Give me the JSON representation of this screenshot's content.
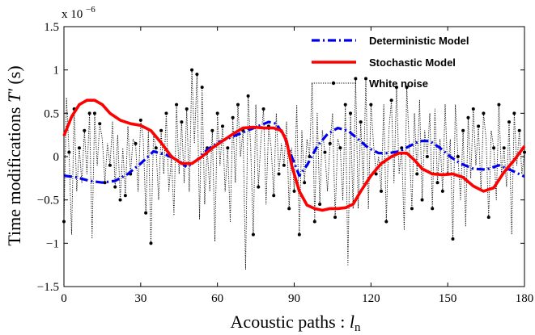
{
  "chart_data": {
    "type": "line",
    "xlabel": "Acoustic paths : ",
    "xlabel_var": "l",
    "xlabel_sub": "n",
    "ylabel": "Time modifications ",
    "ylabel_var": "T'",
    "ylabel_unit": " (s)",
    "y_exponent_prefix": "x 10",
    "y_exponent_power": "−6",
    "xlim": [
      0,
      180
    ],
    "ylim": [
      -1.5,
      1.5
    ],
    "x_ticks": [
      0,
      30,
      60,
      90,
      120,
      150,
      180
    ],
    "y_ticks": [
      -1.5,
      -1,
      -0.5,
      0,
      0.5,
      1,
      1.5
    ],
    "y_tick_labels": [
      "−1.5",
      "−1",
      "−0.5",
      "0",
      "0.5",
      "1",
      "1.5"
    ],
    "legend_position": "top-right",
    "colors": {
      "deterministic": "#0000ee",
      "stochastic": "#ff0000",
      "noise": "#000000"
    },
    "series": [
      {
        "name": "Deterministic Model",
        "style": "dash-dot",
        "points": [
          [
            0,
            -0.22
          ],
          [
            5,
            -0.24
          ],
          [
            10,
            -0.28
          ],
          [
            15,
            -0.3
          ],
          [
            20,
            -0.28
          ],
          [
            25,
            -0.2
          ],
          [
            30,
            -0.08
          ],
          [
            35,
            0.06
          ],
          [
            40,
            0.02
          ],
          [
            45,
            -0.05
          ],
          [
            48,
            -0.12
          ],
          [
            52,
            -0.04
          ],
          [
            56,
            0.08
          ],
          [
            60,
            0.16
          ],
          [
            65,
            0.22
          ],
          [
            70,
            0.28
          ],
          [
            75,
            0.34
          ],
          [
            80,
            0.4
          ],
          [
            83,
            0.38
          ],
          [
            86,
            0.24
          ],
          [
            89,
            0.0
          ],
          [
            92,
            -0.22
          ],
          [
            95,
            -0.1
          ],
          [
            99,
            0.12
          ],
          [
            103,
            0.26
          ],
          [
            107,
            0.33
          ],
          [
            111,
            0.3
          ],
          [
            115,
            0.2
          ],
          [
            119,
            0.1
          ],
          [
            123,
            0.04
          ],
          [
            127,
            0.04
          ],
          [
            131,
            0.06
          ],
          [
            135,
            0.12
          ],
          [
            139,
            0.18
          ],
          [
            143,
            0.18
          ],
          [
            147,
            0.1
          ],
          [
            151,
            0.0
          ],
          [
            155,
            -0.08
          ],
          [
            160,
            -0.14
          ],
          [
            165,
            -0.15
          ],
          [
            170,
            -0.1
          ],
          [
            175,
            -0.16
          ],
          [
            180,
            -0.23
          ]
        ]
      },
      {
        "name": "Stochastic Model",
        "style": "solid",
        "points": [
          [
            0,
            0.24
          ],
          [
            3,
            0.46
          ],
          [
            6,
            0.6
          ],
          [
            9,
            0.65
          ],
          [
            12,
            0.65
          ],
          [
            15,
            0.6
          ],
          [
            18,
            0.5
          ],
          [
            22,
            0.42
          ],
          [
            26,
            0.38
          ],
          [
            30,
            0.36
          ],
          [
            34,
            0.3
          ],
          [
            38,
            0.16
          ],
          [
            42,
            0.0
          ],
          [
            46,
            -0.08
          ],
          [
            50,
            -0.08
          ],
          [
            54,
            0.0
          ],
          [
            58,
            0.1
          ],
          [
            62,
            0.18
          ],
          [
            66,
            0.26
          ],
          [
            70,
            0.33
          ],
          [
            74,
            0.34
          ],
          [
            78,
            0.33
          ],
          [
            82,
            0.33
          ],
          [
            85,
            0.3
          ],
          [
            87,
            0.18
          ],
          [
            89,
            -0.1
          ],
          [
            92,
            -0.4
          ],
          [
            95,
            -0.56
          ],
          [
            98,
            -0.6
          ],
          [
            101,
            -0.62
          ],
          [
            104,
            -0.6
          ],
          [
            107,
            -0.6
          ],
          [
            110,
            -0.59
          ],
          [
            113,
            -0.55
          ],
          [
            116,
            -0.4
          ],
          [
            120,
            -0.22
          ],
          [
            124,
            -0.08
          ],
          [
            128,
            0.0
          ],
          [
            131,
            0.04
          ],
          [
            134,
            0.04
          ],
          [
            137,
            -0.04
          ],
          [
            140,
            -0.14
          ],
          [
            144,
            -0.2
          ],
          [
            148,
            -0.21
          ],
          [
            152,
            -0.2
          ],
          [
            156,
            -0.24
          ],
          [
            160,
            -0.34
          ],
          [
            164,
            -0.4
          ],
          [
            168,
            -0.36
          ],
          [
            172,
            -0.18
          ],
          [
            176,
            -0.04
          ],
          [
            180,
            0.12
          ]
        ]
      },
      {
        "name": "White noise",
        "style": "dotted",
        "points": [
          [
            0,
            -0.75
          ],
          [
            1,
            0.68
          ],
          [
            2,
            0.05
          ],
          [
            3,
            -0.9
          ],
          [
            4,
            0.55
          ],
          [
            5,
            -0.4
          ],
          [
            6,
            0.1
          ],
          [
            7,
            -0.3
          ],
          [
            8,
            0.3
          ],
          [
            9,
            -0.2
          ],
          [
            10,
            0.5
          ],
          [
            11,
            -0.95
          ],
          [
            12,
            0.5
          ],
          [
            13,
            -0.1
          ],
          [
            14,
            0.38
          ],
          [
            15,
            0.2
          ],
          [
            16,
            -0.3
          ],
          [
            17,
            0.15
          ],
          [
            18,
            -0.1
          ],
          [
            19,
            0.4
          ],
          [
            20,
            -0.35
          ],
          [
            21,
            0.25
          ],
          [
            22,
            -0.5
          ],
          [
            23,
            0.1
          ],
          [
            24,
            -0.45
          ],
          [
            25,
            0.35
          ],
          [
            26,
            -0.2
          ],
          [
            27,
            0.2
          ],
          [
            28,
            0.15
          ],
          [
            29,
            -0.4
          ],
          [
            30,
            0.42
          ],
          [
            31,
            0.2
          ],
          [
            32,
            -0.65
          ],
          [
            33,
            0.3
          ],
          [
            34,
            -1.0
          ],
          [
            35,
            0.25
          ],
          [
            36,
            0.1
          ],
          [
            37,
            -0.5
          ],
          [
            38,
            0.3
          ],
          [
            39,
            -0.2
          ],
          [
            40,
            0.5
          ],
          [
            41,
            -0.4
          ],
          [
            42,
            0.0
          ],
          [
            43,
            -0.68
          ],
          [
            44,
            0.6
          ],
          [
            45,
            -0.2
          ],
          [
            46,
            0.4
          ],
          [
            47,
            -0.3
          ],
          [
            48,
            0.55
          ],
          [
            49,
            -0.4
          ],
          [
            50,
            1.0
          ],
          [
            51,
            0.15
          ],
          [
            52,
            0.95
          ],
          [
            53,
            -0.72
          ],
          [
            54,
            0.8
          ],
          [
            55,
            -0.55
          ],
          [
            56,
            0.1
          ],
          [
            57,
            -0.4
          ],
          [
            58,
            0.3
          ],
          [
            59,
            -0.98
          ],
          [
            60,
            0.5
          ],
          [
            61,
            -0.1
          ],
          [
            62,
            0.35
          ],
          [
            63,
            -0.4
          ],
          [
            64,
            0.1
          ],
          [
            65,
            -0.75
          ],
          [
            66,
            0.45
          ],
          [
            67,
            -0.3
          ],
          [
            68,
            0.6
          ],
          [
            69,
            0.0
          ],
          [
            70,
            0.3
          ],
          [
            71,
            -1.3
          ],
          [
            72,
            0.7
          ],
          [
            73,
            0.1
          ],
          [
            74,
            -0.9
          ],
          [
            75,
            0.6
          ],
          [
            76,
            -0.35
          ],
          [
            77,
            0.2
          ],
          [
            78,
            0.55
          ],
          [
            79,
            -0.55
          ],
          [
            80,
            0.35
          ],
          [
            81,
            0.1
          ],
          [
            82,
            -0.45
          ],
          [
            83,
            0.5
          ],
          [
            84,
            -0.2
          ],
          [
            85,
            0.15
          ],
          [
            86,
            -0.1
          ],
          [
            87,
            0.4
          ],
          [
            88,
            -0.6
          ],
          [
            89,
            0.1
          ],
          [
            90,
            -0.4
          ],
          [
            91,
            0.6
          ],
          [
            92,
            -0.9
          ],
          [
            93,
            0.3
          ],
          [
            94,
            -0.3
          ],
          [
            95,
            0.2
          ],
          [
            96,
            0.0
          ],
          [
            97,
            0.85
          ],
          [
            98,
            -0.75
          ],
          [
            99,
            0.5
          ],
          [
            100,
            -0.55
          ],
          [
            101,
            0.3
          ],
          [
            102,
            0.05
          ],
          [
            103,
            -0.4
          ],
          [
            104,
            0.15
          ],
          [
            105,
            0.5
          ],
          [
            106,
            -0.7
          ],
          [
            107,
            0.2
          ],
          [
            108,
            0.1
          ],
          [
            109,
            -0.5
          ],
          [
            110,
            0.6
          ],
          [
            111,
            -1.25
          ],
          [
            112,
            0.5
          ],
          [
            113,
            -0.6
          ],
          [
            114,
            0.9
          ],
          [
            115,
            -0.6
          ],
          [
            116,
            0.4
          ],
          [
            117,
            -0.35
          ],
          [
            118,
            0.9
          ],
          [
            119,
            -0.6
          ],
          [
            120,
            0.6
          ],
          [
            121,
            0.15
          ],
          [
            122,
            -0.2
          ],
          [
            123,
            0.0
          ],
          [
            124,
            -0.4
          ],
          [
            125,
            0.6
          ],
          [
            126,
            -0.75
          ],
          [
            127,
            0.3
          ],
          [
            128,
            0.65
          ],
          [
            129,
            -0.3
          ],
          [
            130,
            0.8
          ],
          [
            131,
            -0.2
          ],
          [
            132,
            0.1
          ],
          [
            133,
            -0.85
          ],
          [
            134,
            0.8
          ],
          [
            135,
            0.1
          ],
          [
            136,
            -0.6
          ],
          [
            137,
            0.5
          ],
          [
            138,
            -0.2
          ],
          [
            139,
            0.65
          ],
          [
            140,
            -0.5
          ],
          [
            141,
            0.3
          ],
          [
            142,
            0.0
          ],
          [
            143,
            0.5
          ],
          [
            144,
            -0.6
          ],
          [
            145,
            0.55
          ],
          [
            146,
            -0.3
          ],
          [
            147,
            0.2
          ],
          [
            148,
            -0.4
          ],
          [
            149,
            0.6
          ],
          [
            150,
            -0.2
          ],
          [
            151,
            0.2
          ],
          [
            152,
            -0.95
          ],
          [
            153,
            0.6
          ],
          [
            154,
            0.0
          ],
          [
            155,
            -0.5
          ],
          [
            156,
            0.3
          ],
          [
            157,
            -0.8
          ],
          [
            158,
            0.45
          ],
          [
            159,
            -0.25
          ],
          [
            160,
            0.55
          ],
          [
            161,
            -0.1
          ],
          [
            162,
            0.35
          ],
          [
            163,
            -0.4
          ],
          [
            164,
            0.5
          ],
          [
            165,
            0.2
          ],
          [
            166,
            -0.7
          ],
          [
            167,
            0.3
          ],
          [
            168,
            0.1
          ],
          [
            169,
            -0.5
          ],
          [
            170,
            0.6
          ],
          [
            171,
            -0.2
          ],
          [
            172,
            0.1
          ],
          [
            173,
            -0.35
          ],
          [
            174,
            0.4
          ],
          [
            175,
            -0.9
          ],
          [
            176,
            0.5
          ],
          [
            177,
            -0.1
          ],
          [
            178,
            0.3
          ],
          [
            179,
            -0.2
          ],
          [
            180,
            0.05
          ]
        ]
      }
    ]
  }
}
